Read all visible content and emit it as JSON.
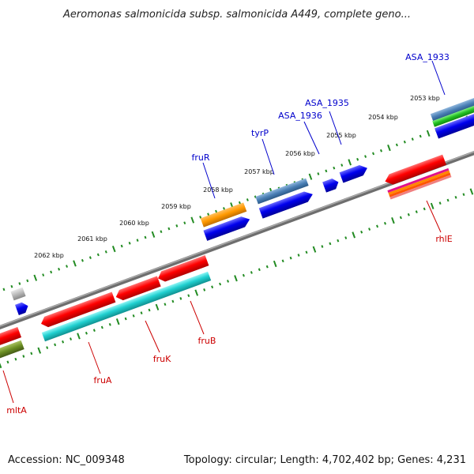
{
  "map": {
    "title": "Aeromonas salmonicida subsp. salmonicida A449, complete geno..."
  },
  "footer": {
    "accession": "Accession: NC_009348",
    "summary": "Topology: circular; Length: 4,702,402 bp; Genes: 4,231"
  },
  "scale": {
    "kbp_labels": [
      "2053 kbp",
      "2054 kbp",
      "2055 kbp",
      "2056 kbp",
      "2057 kbp",
      "2058 kbp",
      "2059 kbp",
      "2060 kbp",
      "2061 kbp",
      "2062 kbp"
    ]
  },
  "genes": {
    "top_strand": [
      "ASA_1933",
      "ASA_1935",
      "ASA_1936",
      "tyrP",
      "fruR"
    ],
    "bottom_strand": [
      "rhlE",
      "fruB",
      "fruK",
      "fruA",
      "mltA"
    ]
  },
  "colors": {
    "top_gene_label": "#0000cc",
    "bottom_gene_label": "#cc0000",
    "scale_ticks": "#228B22",
    "backbone": "#808080"
  }
}
